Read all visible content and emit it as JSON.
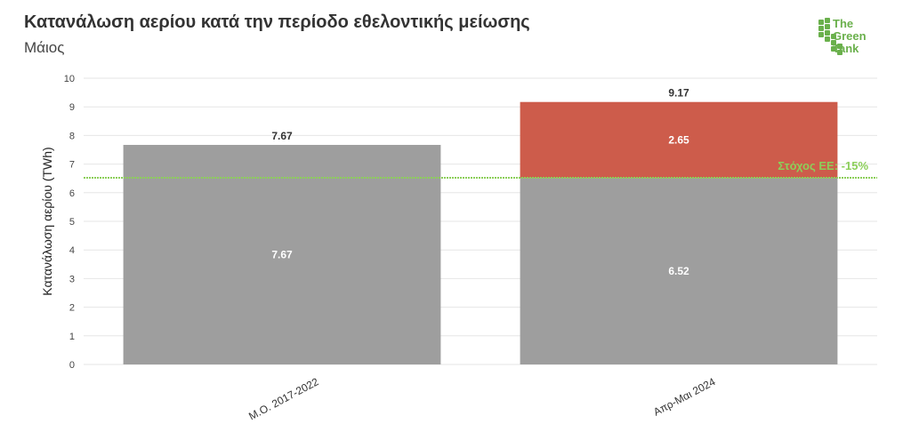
{
  "header": {
    "title": "Κατανάλωση αερίου κατά την περίοδο εθελοντικής μείωσης",
    "subtitle": "Μάιος"
  },
  "logo": {
    "line1": "The",
    "line2": "Green",
    "line3": "Tank",
    "color": "#6ab04c"
  },
  "chart_data": {
    "type": "bar",
    "stacked": true,
    "categories": [
      "Μ.Ο. 2017-2022",
      "Απρ-Μαι 2024"
    ],
    "series": [
      {
        "values": [
          7.67,
          6.52
        ],
        "color": "#9e9e9e"
      },
      {
        "values": [
          0,
          2.65
        ],
        "color": "#cd5c4b"
      }
    ],
    "totals": [
      7.67,
      9.17
    ],
    "segment_labels": [
      [
        "7.67",
        "6.52"
      ],
      [
        "",
        "2.65"
      ]
    ],
    "total_labels": [
      "7.67",
      "9.17"
    ],
    "ylabel": "Κατανάλωση αερίου (TWh)",
    "xlabel": "",
    "ylim": [
      0,
      10
    ],
    "yticks": [
      0,
      1,
      2,
      3,
      4,
      5,
      6,
      7,
      8,
      9,
      10
    ],
    "grid": true,
    "reference_line": {
      "value": 6.52,
      "label": "Στόχος ΕΕ: -15%",
      "color": "#8ccf5a"
    }
  }
}
